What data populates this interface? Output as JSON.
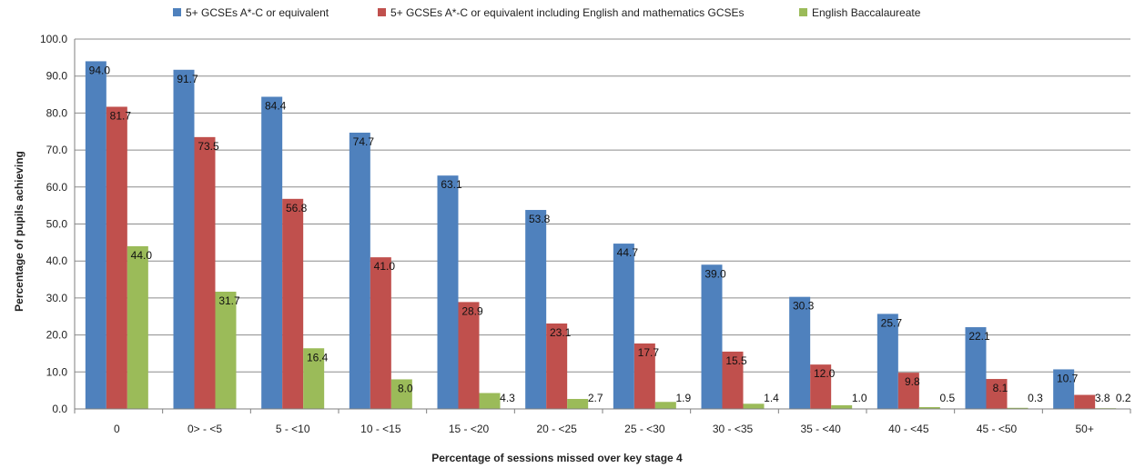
{
  "chart_data": {
    "type": "bar",
    "title": "",
    "xlabel": "Percentage of sessions missed over key stage 4",
    "ylabel": "Percentage of pupils achieving",
    "ylim": [
      0,
      100
    ],
    "yticks": [
      "0.0",
      "10.0",
      "20.0",
      "30.0",
      "40.0",
      "50.0",
      "60.0",
      "70.0",
      "80.0",
      "90.0",
      "100.0"
    ],
    "grid": true,
    "legend_position": "top",
    "categories": [
      "0",
      "0> - <5",
      "5 - <10",
      "10 - <15",
      "15 - <20",
      "20 - <25",
      "25 - <30",
      "30 - <35",
      "35 - <40",
      "40 - <45",
      "45 - <50",
      "50+"
    ],
    "series": [
      {
        "name": "5+ GCSEs A*-C or equivalent",
        "color": "#4F81BD",
        "values": [
          94.0,
          91.7,
          84.4,
          74.7,
          63.1,
          53.8,
          44.7,
          39.0,
          30.3,
          25.7,
          22.1,
          10.7
        ],
        "labels": [
          "94.0",
          "91.7",
          "84.4",
          "74.7",
          "63.1",
          "53.8",
          "44.7",
          "39.0",
          "30.3",
          "25.7",
          "22.1",
          "10.7"
        ]
      },
      {
        "name": "5+ GCSEs A*-C or equivalent including English and mathematics GCSEs",
        "color": "#C0504D",
        "values": [
          81.7,
          73.5,
          56.8,
          41.0,
          28.9,
          23.1,
          17.7,
          15.5,
          12.0,
          9.8,
          8.1,
          3.8
        ],
        "labels": [
          "81.7",
          "73.5",
          "56.8",
          "41.0",
          "28.9",
          "23.1",
          "17.7",
          "15.5",
          "12.0",
          "9.8",
          "8.1",
          "3.8"
        ]
      },
      {
        "name": "English Baccalaureate",
        "color": "#9BBB59",
        "values": [
          44.0,
          31.7,
          16.4,
          8.0,
          4.3,
          2.7,
          1.9,
          1.4,
          1.0,
          0.5,
          0.3,
          0.2
        ],
        "labels": [
          "44.0",
          "31.7",
          "16.4",
          "8.0",
          "4.3",
          "2.7",
          "1.9",
          "1.4",
          "1.0",
          "0.5",
          "0.3",
          "0.2"
        ]
      }
    ]
  }
}
